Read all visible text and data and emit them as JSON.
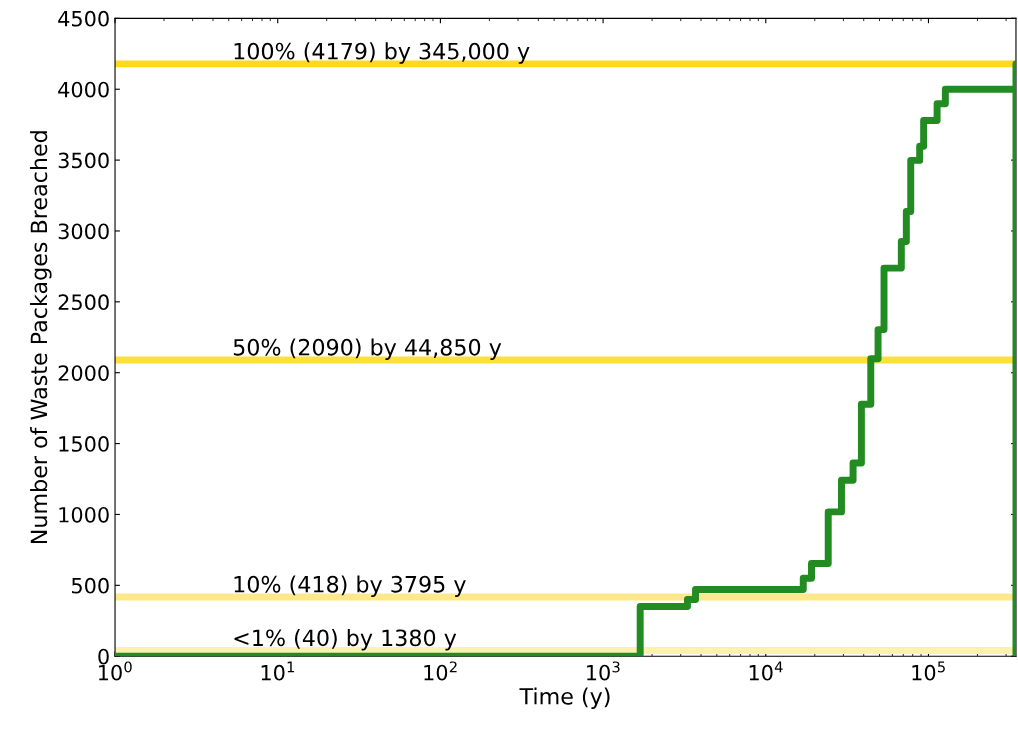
{
  "chart_data": {
    "type": "step",
    "xlabel": "Time (y)",
    "ylabel": "Number of Waste Packages Breached",
    "log": "x",
    "grid": false,
    "xlim": [
      1,
      345000
    ],
    "xticks": [
      {
        "value": 1,
        "label": "10$^{0}$"
      },
      {
        "value": 10,
        "label": "10$^{1}$"
      },
      {
        "value": 100,
        "label": "10$^{2}$"
      },
      {
        "value": 1000,
        "label": "10$^{3}$"
      },
      {
        "value": 10000,
        "label": "10$^{4}$"
      },
      {
        "value": 100000,
        "label": "10$^{5}$"
      }
    ],
    "ylim": [
      0,
      4500
    ],
    "yticks": [
      0,
      500,
      1000,
      1500,
      2000,
      2500,
      3000,
      3500,
      4000,
      4500
    ],
    "series": [
      {
        "color": "#228b22",
        "x": [
          1,
          1690,
          3300,
          3700,
          17000,
          19100,
          24200,
          29200,
          34400,
          38700,
          44200,
          49000,
          53300,
          68100,
          73100,
          77800,
          88300,
          93400,
          113000,
          127000,
          345000,
          345000
        ],
        "values": [
          0,
          350,
          400,
          470,
          550,
          654,
          1018,
          1241,
          1363,
          1777,
          2099,
          2304,
          2738,
          2926,
          3138,
          3498,
          3597,
          3780,
          3897,
          4000,
          4179,
          0
        ]
      }
    ],
    "ref_lines": [
      {
        "axis": "y",
        "value": 4179,
        "label": "100% (4179) by 345,000 y",
        "color": "#ffd91a"
      },
      {
        "axis": "y",
        "value": 2090,
        "label": "50% (2090) by 44,850 y",
        "color": "#fde03a"
      },
      {
        "axis": "y",
        "value": 418,
        "label": "10% (418) by 3795 y",
        "color": "#fde98a"
      },
      {
        "axis": "y",
        "value": 40,
        "label": "<1% (40) by 1380 y",
        "color": "#fdf1b0"
      }
    ]
  }
}
